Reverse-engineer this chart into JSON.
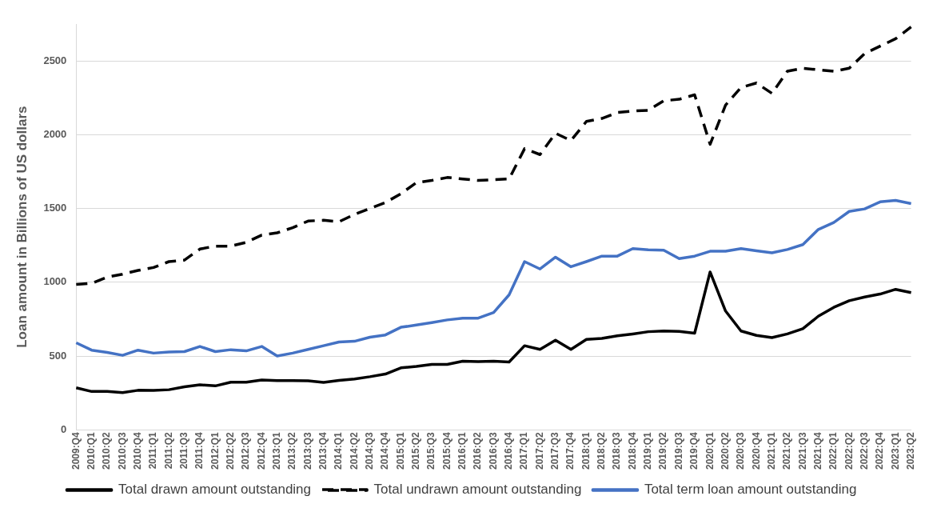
{
  "chart_data": {
    "type": "line",
    "ylabel": "Loan amount in Billions of US dollars",
    "categories": [
      "2009:Q4",
      "2010:Q1",
      "2010:Q2",
      "2010:Q3",
      "2010:Q4",
      "2011:Q1",
      "2011:Q2",
      "2011:Q3",
      "2011:Q4",
      "2012:Q1",
      "2012:Q2",
      "2012:Q3",
      "2012:Q4",
      "2013:Q1",
      "2013:Q2",
      "2013:Q3",
      "2013:Q4",
      "2014:Q1",
      "2014:Q2",
      "2014:Q3",
      "2014:Q4",
      "2015:Q1",
      "2015:Q2",
      "2015:Q3",
      "2015:Q4",
      "2016:Q1",
      "2016:Q2",
      "2016:Q3",
      "2016:Q4",
      "2017:Q1",
      "2017:Q2",
      "2017:Q3",
      "2017:Q4",
      "2018:Q1",
      "2018:Q2",
      "2018:Q3",
      "2018:Q4",
      "2019:Q1",
      "2019:Q2",
      "2019:Q3",
      "2019:Q4",
      "2020:Q1",
      "2020:Q2",
      "2020:Q3",
      "2020:Q4",
      "2021:Q1",
      "2021:Q2",
      "2021:Q3",
      "2021:Q4",
      "2022:Q1",
      "2022:Q2",
      "2022:Q3",
      "2022:Q4",
      "2023:Q1",
      "2023:Q2"
    ],
    "series": [
      {
        "name": "Total drawn amount outstanding",
        "color": "#000000",
        "line_style": "solid",
        "values": [
          285,
          260,
          260,
          252,
          268,
          267,
          272,
          292,
          305,
          298,
          323,
          323,
          338,
          333,
          333,
          332,
          322,
          335,
          345,
          360,
          378,
          420,
          430,
          443,
          443,
          465,
          463,
          465,
          460,
          570,
          545,
          607,
          545,
          613,
          620,
          637,
          650,
          665,
          670,
          667,
          655,
          1070,
          805,
          670,
          640,
          625,
          650,
          685,
          770,
          830,
          875,
          900,
          920,
          952,
          930
        ]
      },
      {
        "name": "Total undrawn amount outstanding",
        "color": "#000000",
        "line_style": "dashed",
        "values": [
          985,
          993,
          1035,
          1055,
          1080,
          1100,
          1140,
          1150,
          1225,
          1245,
          1245,
          1270,
          1320,
          1335,
          1370,
          1415,
          1420,
          1410,
          1460,
          1500,
          1540,
          1600,
          1675,
          1690,
          1710,
          1700,
          1690,
          1695,
          1700,
          1905,
          1865,
          2010,
          1960,
          2090,
          2110,
          2150,
          2160,
          2165,
          2230,
          2240,
          2270,
          1935,
          2200,
          2320,
          2350,
          2280,
          2430,
          2450,
          2440,
          2430,
          2450,
          2550,
          2600,
          2650,
          2730
        ]
      },
      {
        "name": "Total term loan amount outstanding",
        "color": "#4472c4",
        "line_style": "solid",
        "values": [
          590,
          540,
          525,
          505,
          540,
          520,
          528,
          530,
          565,
          530,
          543,
          535,
          565,
          500,
          520,
          545,
          570,
          595,
          600,
          628,
          643,
          695,
          710,
          727,
          745,
          757,
          757,
          795,
          915,
          1140,
          1090,
          1170,
          1105,
          1140,
          1177,
          1177,
          1228,
          1220,
          1217,
          1160,
          1177,
          1210,
          1210,
          1228,
          1213,
          1200,
          1222,
          1255,
          1358,
          1405,
          1480,
          1497,
          1545,
          1555,
          1533
        ]
      }
    ],
    "ylim": [
      0,
      2750
    ],
    "yticks": [
      0,
      500,
      1000,
      1500,
      2000,
      2500
    ],
    "grid": "y",
    "legend": "bottom",
    "marker": "none"
  }
}
